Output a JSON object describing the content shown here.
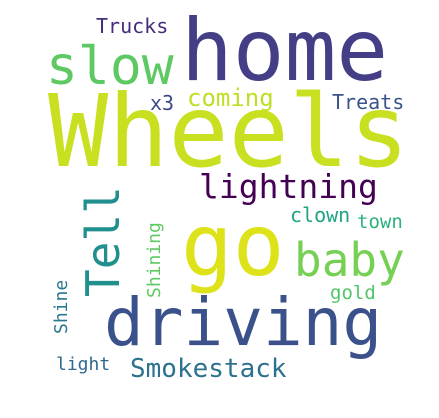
{
  "word_cloud": {
    "words": [
      {
        "id": "wheels",
        "text": "Wheels",
        "color": "#c8e020"
      },
      {
        "id": "home",
        "text": "home",
        "color": "#433e85"
      },
      {
        "id": "go",
        "text": "go",
        "color": "#dde318"
      },
      {
        "id": "driving",
        "text": "driving",
        "color": "#3b518b"
      },
      {
        "id": "slow",
        "text": "slow",
        "color": "#5ec962"
      },
      {
        "id": "baby",
        "text": "baby",
        "color": "#75d054"
      },
      {
        "id": "tell",
        "text": "Tell",
        "color": "#218f8d"
      },
      {
        "id": "lightning",
        "text": "lightning",
        "color": "#440154"
      },
      {
        "id": "smokestack",
        "text": "Smokestack",
        "color": "#2c728e"
      },
      {
        "id": "coming",
        "text": "coming",
        "color": "#bddf26"
      },
      {
        "id": "trucks",
        "text": "Trucks",
        "color": "#472c7a"
      },
      {
        "id": "treats",
        "text": "Treats",
        "color": "#3b528b"
      },
      {
        "id": "x3",
        "text": "x3",
        "color": "#3e4989"
      },
      {
        "id": "clown",
        "text": "clown",
        "color": "#20a386"
      },
      {
        "id": "town",
        "text": "town",
        "color": "#2db27d"
      },
      {
        "id": "gold",
        "text": "gold",
        "color": "#52c569"
      },
      {
        "id": "shining",
        "text": "Shining",
        "color": "#5ec962"
      },
      {
        "id": "shine",
        "text": "Shine",
        "color": "#2a788e"
      },
      {
        "id": "light",
        "text": "light",
        "color": "#31688e"
      }
    ]
  }
}
